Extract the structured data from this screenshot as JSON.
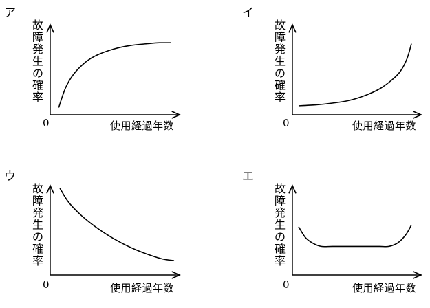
{
  "chart_data": [
    {
      "type": "line",
      "panel_label": "ア",
      "ylabel_chars": [
        "故",
        "障",
        "発",
        "生",
        "の",
        "確",
        "率"
      ],
      "xlabel": "使用経過年数",
      "origin_label": "0",
      "x": [
        0.02,
        0.08,
        0.15,
        0.25,
        0.35,
        0.5,
        0.65,
        0.8,
        0.9,
        1.0
      ],
      "y": [
        0.08,
        0.3,
        0.45,
        0.58,
        0.66,
        0.73,
        0.77,
        0.79,
        0.8,
        0.8
      ]
    },
    {
      "type": "line",
      "panel_label": "イ",
      "ylabel_chars": [
        "故",
        "障",
        "発",
        "生",
        "の",
        "確",
        "率"
      ],
      "xlabel": "使用経過年数",
      "origin_label": "0",
      "x": [
        0.0,
        0.15,
        0.3,
        0.45,
        0.6,
        0.72,
        0.82,
        0.9,
        0.96,
        1.0
      ],
      "y": [
        0.1,
        0.11,
        0.13,
        0.16,
        0.22,
        0.29,
        0.38,
        0.48,
        0.62,
        0.79
      ]
    },
    {
      "type": "line",
      "panel_label": "ウ",
      "ylabel_chars": [
        "故",
        "障",
        "発",
        "生",
        "の",
        "確",
        "率"
      ],
      "xlabel": "使用経過年数",
      "origin_label": "0",
      "x": [
        0.03,
        0.1,
        0.2,
        0.3,
        0.42,
        0.55,
        0.68,
        0.8,
        0.9,
        1.0
      ],
      "y": [
        0.97,
        0.82,
        0.68,
        0.57,
        0.46,
        0.36,
        0.28,
        0.22,
        0.18,
        0.16
      ]
    },
    {
      "type": "line",
      "panel_label": "エ",
      "ylabel_chars": [
        "故",
        "障",
        "発",
        "生",
        "の",
        "確",
        "率"
      ],
      "xlabel": "使用経過年数",
      "origin_label": "0",
      "x": [
        0.0,
        0.06,
        0.12,
        0.2,
        0.3,
        0.45,
        0.6,
        0.72,
        0.8,
        0.88,
        0.95,
        1.0
      ],
      "y": [
        0.54,
        0.42,
        0.36,
        0.32,
        0.32,
        0.32,
        0.32,
        0.32,
        0.32,
        0.36,
        0.45,
        0.56
      ]
    }
  ]
}
